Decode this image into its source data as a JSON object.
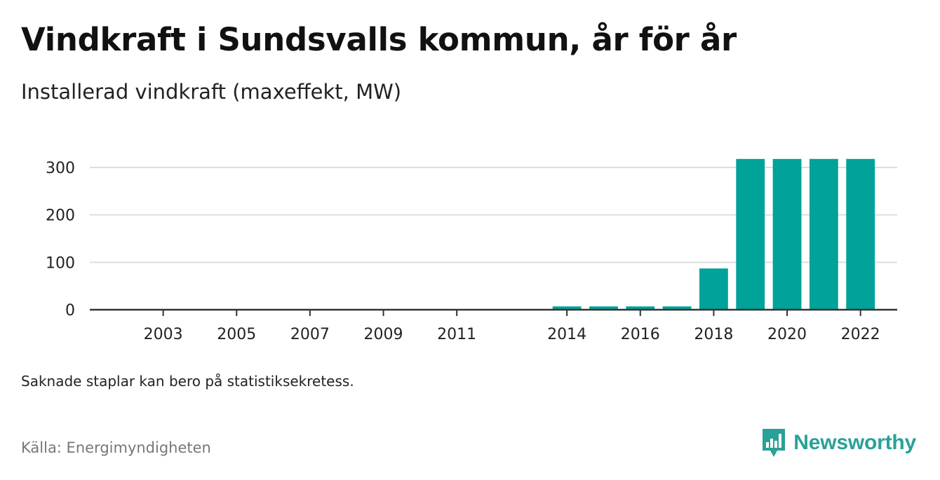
{
  "title": "Vindkraft i Sundsvalls kommun, år för år",
  "subtitle": "Installerad vindkraft (maxeffekt, MW)",
  "note": "Saknade staplar kan bero på statistiksekretess.",
  "source": "Källa: Energimyndigheten",
  "brand": {
    "name": "Newsworthy",
    "icon": "newsworthy-logo-icon",
    "color": "#2aa198"
  },
  "chart_data": {
    "type": "bar",
    "title": "Vindkraft i Sundsvalls kommun, år för år",
    "subtitle": "Installerad vindkraft (maxeffekt, MW)",
    "xlabel": "",
    "ylabel": "",
    "categories": [
      "2014",
      "2015",
      "2016",
      "2017",
      "2018",
      "2019",
      "2020",
      "2021",
      "2022"
    ],
    "values": [
      7,
      7,
      7,
      7,
      87,
      318,
      318,
      318,
      318
    ],
    "x_tick_labels": [
      "2003",
      "2005",
      "2007",
      "2009",
      "2011",
      "2014",
      "2016",
      "2018",
      "2020",
      "2022"
    ],
    "x_range": [
      2001,
      2023
    ],
    "ylim": [
      0,
      320
    ],
    "y_ticks": [
      0,
      100,
      200,
      300
    ],
    "grid": true,
    "bar_color": "#00a29a",
    "legend": "none"
  }
}
